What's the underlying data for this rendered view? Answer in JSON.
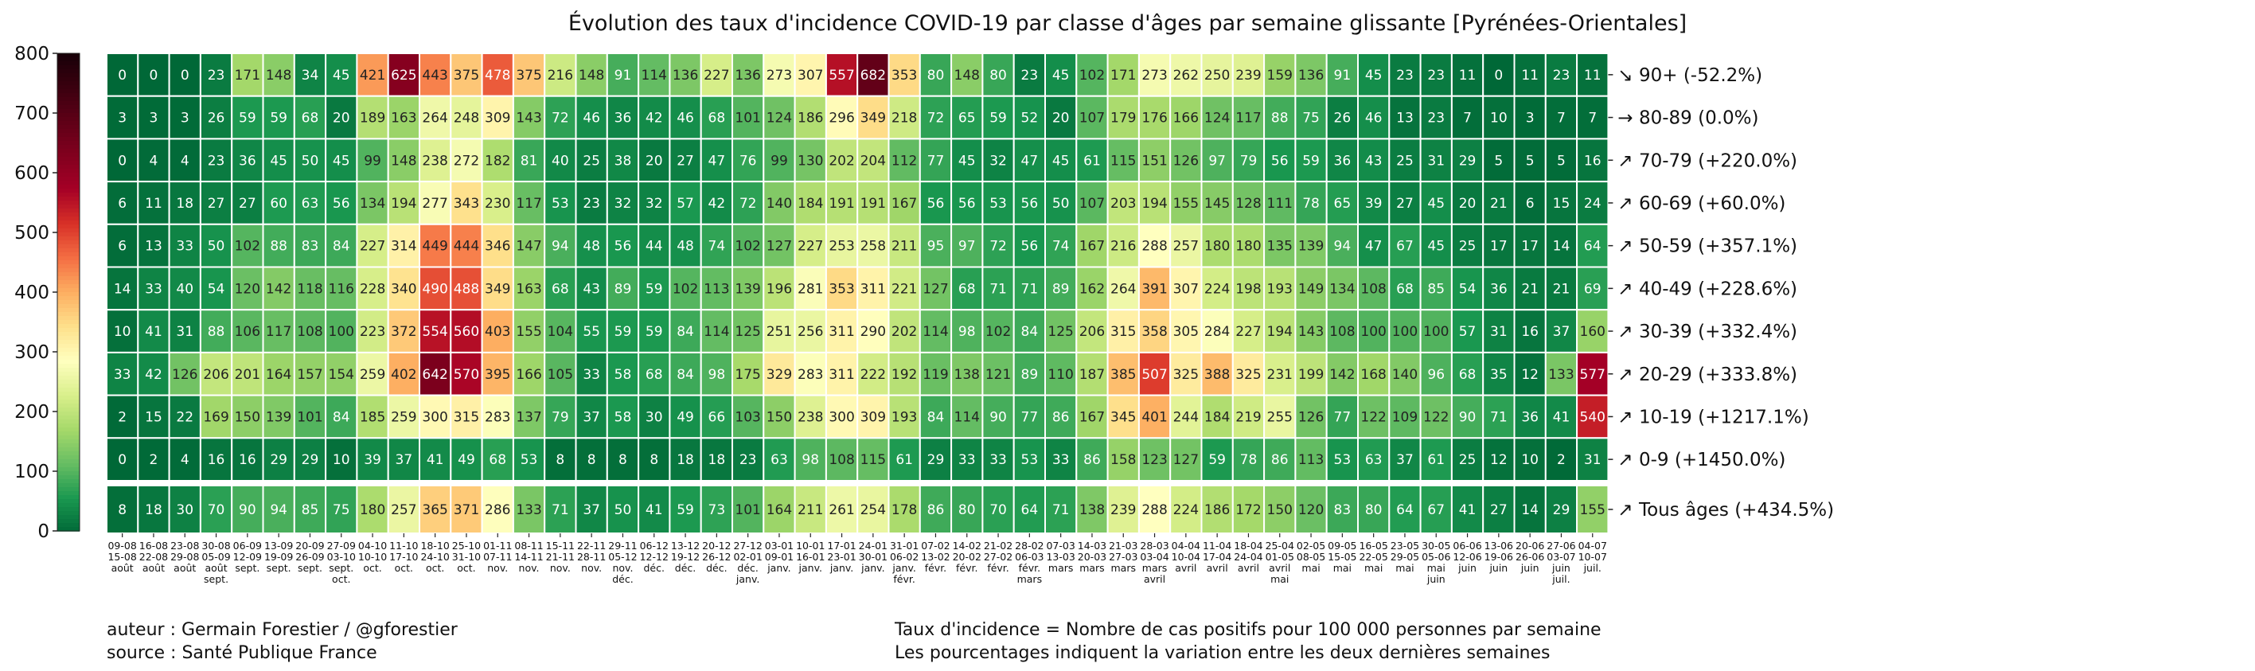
{
  "title": "Évolution des taux d'incidence COVID-19 par classe d'âges par semaine glissante [Pyrénées-Orientales]",
  "footer": {
    "author": "auteur : Germain Forestier / @gforestier",
    "source": "source : Santé Publique France",
    "definition": "Taux d'incidence = Nombre de cas positifs pour 100 000 personnes par semaine",
    "note": "Les pourcentages indiquent la variation entre les deux dernières semaines"
  },
  "chart_data": {
    "type": "heatmap",
    "colorscale": "RdYlGn_r",
    "colorbar": {
      "min": 0,
      "max": 800,
      "ticks": [
        0,
        100,
        200,
        300,
        400,
        500,
        600,
        700,
        800
      ]
    },
    "columns": [
      [
        "09-08",
        "15-08",
        "août"
      ],
      [
        "16-08",
        "22-08",
        "août"
      ],
      [
        "23-08",
        "29-08",
        "août"
      ],
      [
        "30-08",
        "05-09",
        "août",
        "sept."
      ],
      [
        "06-09",
        "12-09",
        "sept."
      ],
      [
        "13-09",
        "19-09",
        "sept."
      ],
      [
        "20-09",
        "26-09",
        "sept."
      ],
      [
        "27-09",
        "03-10",
        "sept.",
        "oct."
      ],
      [
        "04-10",
        "10-10",
        "oct."
      ],
      [
        "11-10",
        "17-10",
        "oct."
      ],
      [
        "18-10",
        "24-10",
        "oct."
      ],
      [
        "25-10",
        "31-10",
        "oct."
      ],
      [
        "01-11",
        "07-11",
        "nov."
      ],
      [
        "08-11",
        "14-11",
        "nov."
      ],
      [
        "15-11",
        "21-11",
        "nov."
      ],
      [
        "22-11",
        "28-11",
        "nov."
      ],
      [
        "29-11",
        "05-12",
        "nov.",
        "déc."
      ],
      [
        "06-12",
        "12-12",
        "déc."
      ],
      [
        "13-12",
        "19-12",
        "déc."
      ],
      [
        "20-12",
        "26-12",
        "déc."
      ],
      [
        "27-12",
        "02-01",
        "déc.",
        "janv."
      ],
      [
        "03-01",
        "09-01",
        "janv."
      ],
      [
        "10-01",
        "16-01",
        "janv."
      ],
      [
        "17-01",
        "23-01",
        "janv."
      ],
      [
        "24-01",
        "30-01",
        "janv."
      ],
      [
        "31-01",
        "06-02",
        "janv.",
        "févr."
      ],
      [
        "07-02",
        "13-02",
        "févr."
      ],
      [
        "14-02",
        "20-02",
        "févr."
      ],
      [
        "21-02",
        "27-02",
        "févr."
      ],
      [
        "28-02",
        "06-03",
        "févr.",
        "mars"
      ],
      [
        "07-03",
        "13-03",
        "mars"
      ],
      [
        "14-03",
        "20-03",
        "mars"
      ],
      [
        "21-03",
        "27-03",
        "mars"
      ],
      [
        "28-03",
        "03-04",
        "mars",
        "avril"
      ],
      [
        "04-04",
        "10-04",
        "avril"
      ],
      [
        "11-04",
        "17-04",
        "avril"
      ],
      [
        "18-04",
        "24-04",
        "avril"
      ],
      [
        "25-04",
        "01-05",
        "avril",
        "mai"
      ],
      [
        "02-05",
        "08-05",
        "mai"
      ],
      [
        "09-05",
        "15-05",
        "mai"
      ],
      [
        "16-05",
        "22-05",
        "mai"
      ],
      [
        "23-05",
        "29-05",
        "mai"
      ],
      [
        "30-05",
        "05-06",
        "mai",
        "juin"
      ],
      [
        "06-06",
        "12-06",
        "juin"
      ],
      [
        "13-06",
        "19-06",
        "juin"
      ],
      [
        "20-06",
        "26-06",
        "juin"
      ],
      [
        "27-06",
        "03-07",
        "juin",
        "juil."
      ],
      [
        "04-07",
        "10-07",
        "juil."
      ]
    ],
    "rows": [
      {
        "label": "↘ 90+ (-52.2%)",
        "values": [
          0,
          0,
          0,
          23,
          171,
          148,
          34,
          45,
          421,
          625,
          443,
          375,
          478,
          375,
          216,
          148,
          91,
          114,
          136,
          227,
          136,
          273,
          307,
          557,
          682,
          353,
          80,
          148,
          80,
          23,
          45,
          102,
          171,
          273,
          262,
          250,
          239,
          159,
          136,
          91,
          45,
          23,
          23,
          11,
          0,
          11,
          23,
          11
        ]
      },
      {
        "label": "→ 80-89 (0.0%)",
        "values": [
          3,
          3,
          3,
          26,
          59,
          59,
          68,
          20,
          189,
          163,
          264,
          248,
          309,
          143,
          72,
          46,
          36,
          42,
          46,
          68,
          101,
          124,
          186,
          296,
          349,
          218,
          72,
          65,
          59,
          52,
          20,
          107,
          179,
          176,
          166,
          124,
          117,
          88,
          75,
          26,
          46,
          13,
          23,
          7,
          10,
          3,
          7,
          7
        ]
      },
      {
        "label": "↗ 70-79 (+220.0%)",
        "values": [
          0,
          4,
          4,
          23,
          36,
          45,
          50,
          45,
          99,
          148,
          238,
          272,
          182,
          81,
          40,
          25,
          38,
          20,
          27,
          47,
          76,
          99,
          130,
          202,
          204,
          112,
          77,
          45,
          32,
          47,
          45,
          61,
          115,
          151,
          126,
          97,
          79,
          56,
          59,
          36,
          43,
          25,
          31,
          29,
          5,
          5,
          5,
          16
        ]
      },
      {
        "label": "↗ 60-69 (+60.0%)",
        "values": [
          6,
          11,
          18,
          27,
          27,
          60,
          63,
          56,
          134,
          194,
          277,
          343,
          230,
          117,
          53,
          23,
          32,
          32,
          57,
          42,
          72,
          140,
          184,
          191,
          191,
          167,
          56,
          56,
          53,
          56,
          50,
          107,
          203,
          194,
          155,
          145,
          128,
          111,
          78,
          65,
          39,
          27,
          45,
          20,
          21,
          6,
          15,
          24
        ]
      },
      {
        "label": "↗ 50-59 (+357.1%)",
        "values": [
          6,
          13,
          33,
          50,
          102,
          88,
          83,
          84,
          227,
          314,
          449,
          444,
          346,
          147,
          94,
          48,
          56,
          44,
          48,
          74,
          102,
          127,
          227,
          253,
          258,
          211,
          95,
          97,
          72,
          56,
          74,
          167,
          216,
          288,
          257,
          180,
          180,
          135,
          139,
          94,
          47,
          67,
          45,
          25,
          17,
          17,
          14,
          64
        ]
      },
      {
        "label": "↗ 40-49 (+228.6%)",
        "values": [
          14,
          33,
          40,
          54,
          120,
          142,
          118,
          116,
          228,
          340,
          490,
          488,
          349,
          163,
          68,
          43,
          89,
          59,
          102,
          113,
          139,
          196,
          281,
          353,
          311,
          221,
          127,
          68,
          71,
          71,
          89,
          162,
          264,
          391,
          307,
          224,
          198,
          193,
          149,
          134,
          108,
          68,
          85,
          54,
          36,
          21,
          21,
          69
        ]
      },
      {
        "label": "↗ 30-39 (+332.4%)",
        "values": [
          10,
          41,
          31,
          88,
          106,
          117,
          108,
          100,
          223,
          372,
          554,
          560,
          403,
          155,
          104,
          55,
          59,
          59,
          84,
          114,
          125,
          251,
          256,
          311,
          290,
          202,
          114,
          98,
          102,
          84,
          125,
          206,
          315,
          358,
          305,
          284,
          227,
          194,
          143,
          108,
          100,
          100,
          100,
          57,
          31,
          16,
          37,
          160
        ]
      },
      {
        "label": "↗ 20-29 (+333.8%)",
        "values": [
          33,
          42,
          126,
          206,
          201,
          164,
          157,
          154,
          259,
          402,
          642,
          570,
          395,
          166,
          105,
          33,
          58,
          68,
          84,
          98,
          175,
          329,
          283,
          311,
          222,
          192,
          119,
          138,
          121,
          89,
          110,
          187,
          385,
          507,
          325,
          388,
          325,
          231,
          199,
          142,
          168,
          140,
          96,
          68,
          35,
          12,
          133,
          577
        ]
      },
      {
        "label": "↗ 10-19 (+1217.1%)",
        "values": [
          2,
          15,
          22,
          169,
          150,
          139,
          101,
          84,
          185,
          259,
          300,
          315,
          283,
          137,
          79,
          37,
          58,
          30,
          49,
          66,
          103,
          150,
          238,
          300,
          309,
          193,
          84,
          114,
          90,
          77,
          86,
          167,
          345,
          401,
          244,
          184,
          219,
          255,
          126,
          77,
          122,
          109,
          122,
          90,
          71,
          36,
          41,
          540
        ]
      },
      {
        "label": "↗ 0-9 (+1450.0%)",
        "values": [
          0,
          2,
          4,
          16,
          16,
          29,
          29,
          10,
          39,
          37,
          41,
          49,
          68,
          53,
          8,
          8,
          8,
          8,
          18,
          18,
          23,
          63,
          98,
          108,
          115,
          61,
          29,
          33,
          33,
          53,
          33,
          86,
          158,
          123,
          127,
          59,
          78,
          86,
          113,
          53,
          63,
          37,
          61,
          25,
          12,
          10,
          2,
          31
        ]
      }
    ],
    "total": {
      "label": "↗ Tous âges (+434.5%)",
      "values": [
        8,
        18,
        30,
        70,
        90,
        94,
        85,
        75,
        180,
        257,
        365,
        371,
        286,
        133,
        71,
        37,
        50,
        41,
        59,
        73,
        101,
        164,
        211,
        261,
        254,
        178,
        86,
        80,
        70,
        64,
        71,
        138,
        239,
        288,
        224,
        186,
        172,
        150,
        120,
        83,
        80,
        64,
        67,
        41,
        27,
        14,
        29,
        155
      ]
    }
  }
}
